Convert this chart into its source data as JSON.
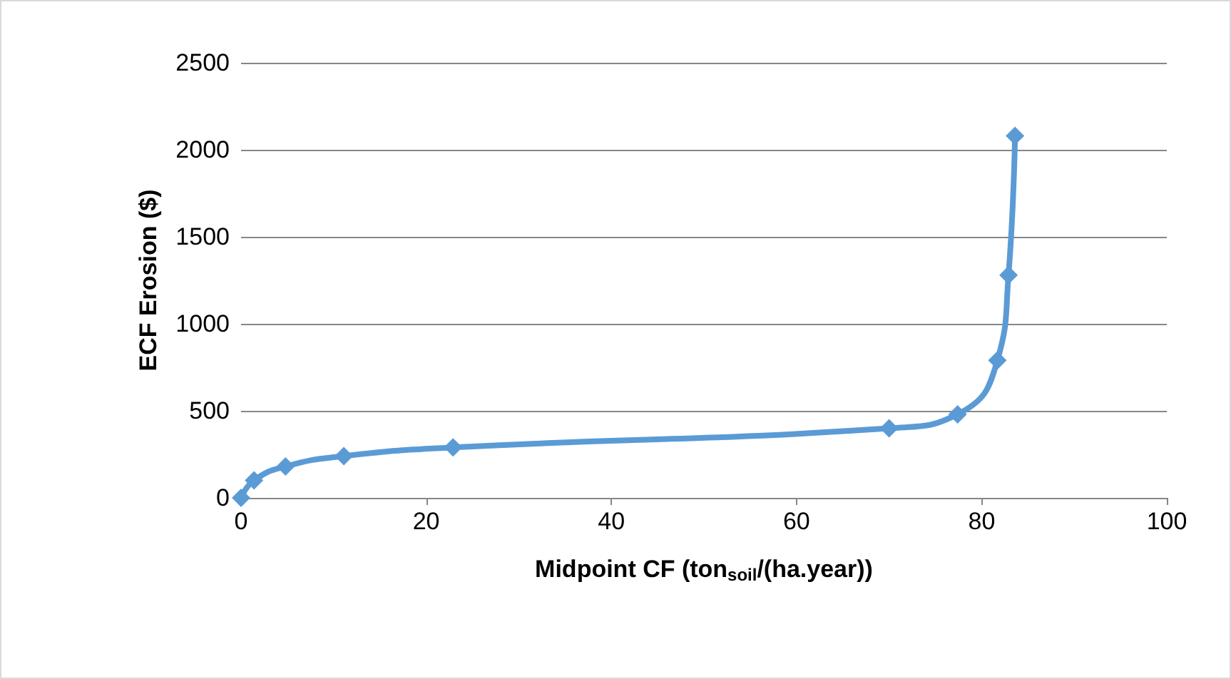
{
  "chart_data": {
    "type": "line",
    "xlabel": "Midpoint CF (ton$_{soil}$/(ha.year))",
    "ylabel": "ECF Erosion ($)",
    "x": [
      0,
      1.4,
      4.8,
      11.1,
      22.9,
      70.0,
      77.4,
      81.7,
      82.9,
      83.6
    ],
    "series": [
      {
        "color": "#5b9bd5",
        "values": [
          0,
          100,
          180,
          240,
          290,
          400,
          480,
          790,
          1280,
          2080
        ]
      }
    ],
    "xlim": [
      0,
      100
    ],
    "xticks": [
      0,
      20,
      40,
      60,
      80,
      100
    ],
    "ylim": [
      0,
      2500
    ],
    "yticks": [
      0,
      500,
      1000,
      1500,
      2000,
      2500
    ],
    "grid": "y",
    "marker": "diamond",
    "line_style": "solid"
  }
}
